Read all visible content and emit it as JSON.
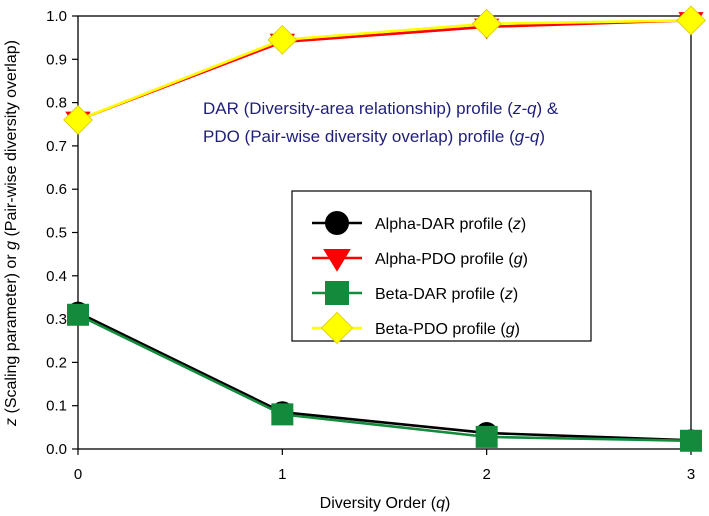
{
  "chart_data": {
    "type": "line",
    "xlabel_text": "Diversity Order (",
    "xlabel_var": "q",
    "xlabel_end": ")",
    "ylabel_parts": [
      {
        "t": "z",
        "i": true
      },
      {
        "t": " (Scaling parameter) or ",
        "i": false
      },
      {
        "t": "g",
        "i": true
      },
      {
        "t": " (Pair-wise diversity overlap)",
        "i": false
      }
    ],
    "annotation": {
      "line1": [
        {
          "t": "DAR (Diversity-area relationship) profile (",
          "i": false
        },
        {
          "t": "z-q",
          "i": true
        },
        {
          "t": ") &",
          "i": false
        }
      ],
      "line2": [
        {
          "t": "PDO (Pair-wise diversity overlap) profile (",
          "i": false
        },
        {
          "t": "g-q",
          "i": true
        },
        {
          "t": ")",
          "i": false
        }
      ],
      "color": "#1f1f7a"
    },
    "x": [
      0,
      1,
      2,
      3
    ],
    "xticks": [
      "0",
      "1",
      "2",
      "3"
    ],
    "ylim": [
      0,
      1.0
    ],
    "yticks": [
      "0.0",
      "0.1",
      "0.2",
      "0.3",
      "0.4",
      "0.5",
      "0.6",
      "0.7",
      "0.8",
      "0.9",
      "1.0"
    ],
    "grid": false,
    "legend_placement": "center-right",
    "series": [
      {
        "label": "Alpha-DAR profile (",
        "var": "z",
        "color": "#000000",
        "marker": "circle",
        "values": [
          0.315,
          0.085,
          0.037,
          0.02
        ]
      },
      {
        "label": "Alpha-PDO profile (",
        "var": "g",
        "color": "#ff0000",
        "marker": "triangle-down",
        "values": [
          0.76,
          0.94,
          0.975,
          0.99
        ]
      },
      {
        "label": "Beta-DAR profile (",
        "var": "z",
        "color": "#138a3c",
        "marker": "square",
        "values": [
          0.31,
          0.08,
          0.028,
          0.019
        ]
      },
      {
        "label": "Beta-PDO profile (",
        "var": "g",
        "color": "#ffff00",
        "marker": "diamond",
        "values": [
          0.76,
          0.945,
          0.982,
          0.99
        ]
      }
    ]
  }
}
